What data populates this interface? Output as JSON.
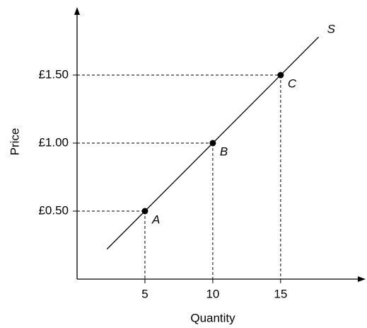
{
  "chart_data": {
    "type": "line",
    "xlabel": "Quantity",
    "ylabel": "Price",
    "xlim": [
      0,
      21
    ],
    "ylim": [
      0,
      2
    ],
    "xticks": [
      5,
      10,
      15
    ],
    "yticks": [
      {
        "value": 0.5,
        "label": "£0.50"
      },
      {
        "value": 1,
        "label": "£1.00"
      },
      {
        "value": 1.5,
        "label": "£1.50"
      }
    ],
    "series": [
      {
        "name": "S",
        "color": "#000000",
        "x": [
          2.2,
          17.8
        ],
        "values": [
          0.22,
          1.78
        ]
      }
    ],
    "points": {
      "labels": [
        "A",
        "B",
        "C"
      ],
      "x": [
        5,
        10,
        15
      ],
      "values": [
        0.5,
        1,
        1.5
      ],
      "color": "#000000"
    }
  }
}
